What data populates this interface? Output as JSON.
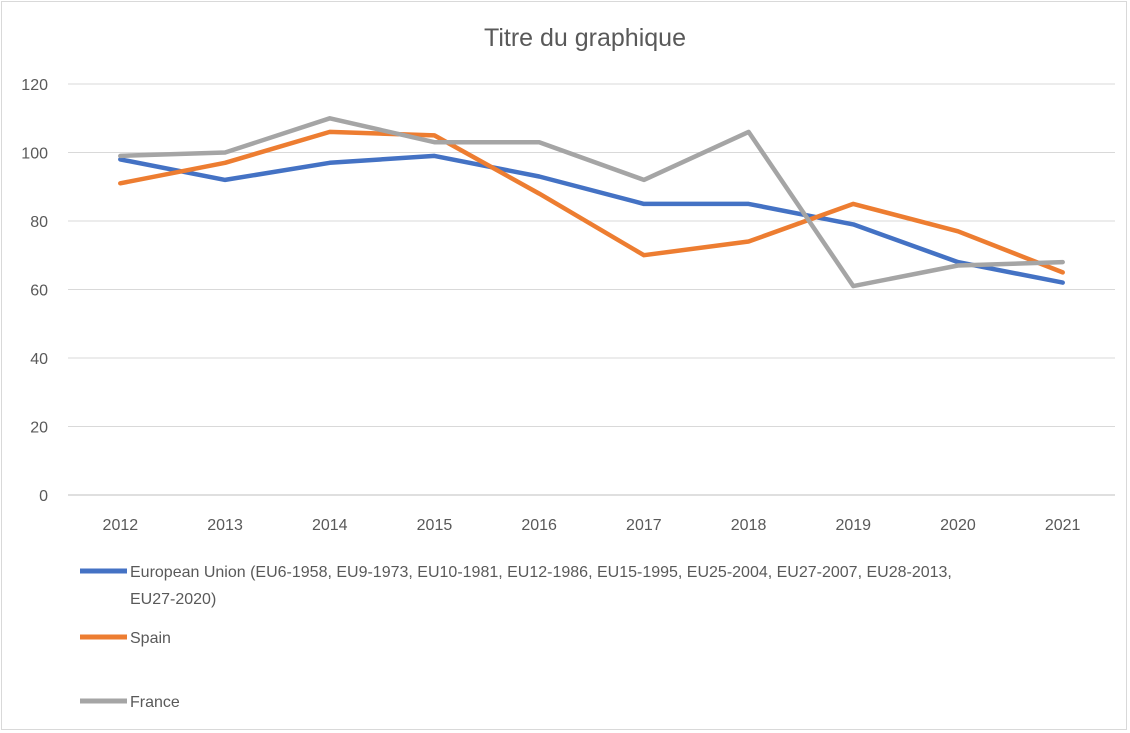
{
  "chart_data": {
    "type": "line",
    "title": "Titre du graphique",
    "xlabel": "",
    "ylabel": "",
    "categories": [
      "2012",
      "2013",
      "2014",
      "2015",
      "2016",
      "2017",
      "2018",
      "2019",
      "2020",
      "2021"
    ],
    "yticks": [
      "0",
      "20",
      "40",
      "60",
      "80",
      "100",
      "120"
    ],
    "ylim": [
      0,
      120
    ],
    "grid": true,
    "legend_position": "bottom-left",
    "series": [
      {
        "name": "European Union (EU6-1958, EU9-1973, EU10-1981, EU12-1986, EU15-1995, EU25-2004, EU27-2007, EU28-2013, EU27-2020)",
        "legend_lines": [
          "European Union (EU6-1958, EU9-1973, EU10-1981, EU12-1986, EU15-1995, EU25-2004, EU27-2007, EU28-2013,",
          "EU27-2020)"
        ],
        "color": "#4472c4",
        "values": [
          98,
          92,
          97,
          99,
          93,
          85,
          85,
          79,
          68,
          62
        ]
      },
      {
        "name": "Spain",
        "legend_lines": [
          "Spain"
        ],
        "color": "#ed7d31",
        "values": [
          91,
          97,
          106,
          105,
          88,
          70,
          74,
          85,
          77,
          65
        ]
      },
      {
        "name": "France",
        "legend_lines": [
          "France"
        ],
        "color": "#a5a5a5",
        "values": [
          99,
          100,
          110,
          103,
          103,
          92,
          106,
          61,
          67,
          68
        ]
      }
    ]
  }
}
